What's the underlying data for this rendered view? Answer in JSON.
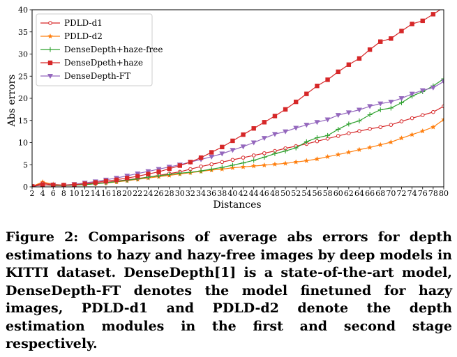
{
  "caption": "Figure 2: Comparisons of average abs errors for depth estimations to hazy and hazy-free images by deep models in KITTI dataset. DenseDepth[1] is a state-of-the-art model, DenseDepth-FT denotes the model finetuned for hazy images, PDLD-d1 and PDLD-d2 denote the depth estimation modules in the first and second stage respectively.",
  "chart_data": {
    "type": "line",
    "xlabel": "Distances",
    "ylabel": "Abs errors",
    "xlim": [
      2,
      80
    ],
    "ylim": [
      0,
      40
    ],
    "xticks": [
      2,
      4,
      6,
      8,
      10,
      12,
      14,
      16,
      18,
      20,
      22,
      24,
      26,
      28,
      30,
      32,
      34,
      36,
      38,
      40,
      42,
      44,
      46,
      48,
      50,
      52,
      54,
      56,
      58,
      60,
      62,
      64,
      66,
      68,
      70,
      72,
      74,
      76,
      78,
      80
    ],
    "yticks": [
      0,
      5,
      10,
      15,
      20,
      25,
      30,
      35,
      40
    ],
    "legend_position": "top-left",
    "grid": false,
    "x": [
      2,
      4,
      6,
      8,
      10,
      12,
      14,
      16,
      18,
      20,
      22,
      24,
      26,
      28,
      30,
      32,
      34,
      36,
      38,
      40,
      42,
      44,
      46,
      48,
      50,
      52,
      54,
      56,
      58,
      60,
      62,
      64,
      66,
      68,
      70,
      72,
      74,
      76,
      78,
      80
    ],
    "series": [
      {
        "name": "PDLD-d1",
        "color": "#d62728",
        "marker": "circle-open",
        "values": [
          0.1,
          0.8,
          0.5,
          0.3,
          0.4,
          0.6,
          0.8,
          1.0,
          1.3,
          1.6,
          1.9,
          2.2,
          2.6,
          3.0,
          3.4,
          4.0,
          4.6,
          5.1,
          5.6,
          6.1,
          6.6,
          7.1,
          7.6,
          8.1,
          8.7,
          9.2,
          9.7,
          10.3,
          10.9,
          11.5,
          12.1,
          12.6,
          13.1,
          13.5,
          14.0,
          14.8,
          15.5,
          16.2,
          16.9,
          18.2
        ]
      },
      {
        "name": "PDLD-d2",
        "color": "#ff7f0e",
        "marker": "star",
        "values": [
          0.1,
          1.1,
          0.6,
          0.4,
          0.4,
          0.5,
          0.7,
          0.9,
          1.1,
          1.4,
          1.7,
          2.0,
          2.3,
          2.6,
          2.9,
          3.2,
          3.5,
          3.8,
          4.0,
          4.3,
          4.5,
          4.7,
          4.9,
          5.1,
          5.3,
          5.6,
          5.9,
          6.3,
          6.8,
          7.3,
          7.8,
          8.4,
          8.9,
          9.5,
          10.1,
          11.0,
          11.8,
          12.6,
          13.5,
          15.2
        ]
      },
      {
        "name": "DenseDepth+haze-free",
        "color": "#2ca02c",
        "marker": "plus",
        "values": [
          0.1,
          0.5,
          0.3,
          0.3,
          0.4,
          0.5,
          0.7,
          0.9,
          1.2,
          1.5,
          1.8,
          2.2,
          2.5,
          2.8,
          3.1,
          3.3,
          3.6,
          4.0,
          4.4,
          4.9,
          5.4,
          6.0,
          6.7,
          7.5,
          8.1,
          8.8,
          10.2,
          11.1,
          11.6,
          13.0,
          14.2,
          14.9,
          16.3,
          17.4,
          17.8,
          19.0,
          20.5,
          21.5,
          22.8,
          24.4
        ]
      },
      {
        "name": "DenseDpeth+haze",
        "color": "#d62728",
        "marker": "square",
        "values": [
          0.1,
          0.5,
          0.4,
          0.4,
          0.5,
          0.7,
          1.0,
          1.3,
          1.6,
          2.0,
          2.4,
          2.9,
          3.4,
          4.1,
          4.8,
          5.6,
          6.6,
          7.8,
          9.0,
          10.4,
          11.8,
          13.2,
          14.6,
          16.0,
          17.5,
          19.2,
          21.0,
          22.8,
          24.2,
          26.0,
          27.6,
          29.0,
          31.0,
          32.8,
          33.5,
          35.2,
          36.8,
          37.5,
          39.0,
          40.5
        ]
      },
      {
        "name": "DenseDepth-FT",
        "color": "#9467bd",
        "marker": "triangle-down",
        "values": [
          0.1,
          0.4,
          0.5,
          0.4,
          0.6,
          0.9,
          1.2,
          1.6,
          2.0,
          2.5,
          3.0,
          3.5,
          4.0,
          4.5,
          5.0,
          5.6,
          6.2,
          6.8,
          7.5,
          8.3,
          9.1,
          10.0,
          11.0,
          11.9,
          12.5,
          13.3,
          14.0,
          14.6,
          15.2,
          16.2,
          16.8,
          17.4,
          18.2,
          18.8,
          19.2,
          20.0,
          21.0,
          21.8,
          22.4,
          23.8
        ]
      }
    ]
  }
}
